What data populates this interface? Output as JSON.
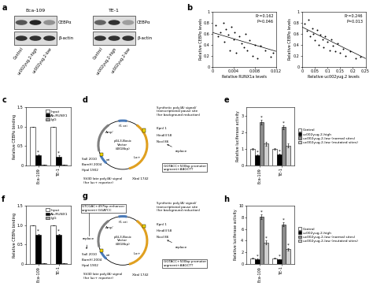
{
  "blot": {
    "panel": "a",
    "groups": [
      {
        "name": "Eca-109",
        "lanes": [
          "Control",
          "uc002yug.2-high",
          "uc002yug.2-low"
        ],
        "rows": [
          {
            "label": "CEBPα",
            "intensity": [
              0.7,
              0.9,
              0.45
            ]
          },
          {
            "label": "β-actin",
            "intensity": [
              0.85,
              0.85,
              0.85
            ]
          }
        ]
      },
      {
        "name": "TE-1",
        "lanes": [
          "Control",
          "uc002yug.2-high",
          "uc002yug.2-low"
        ],
        "rows": [
          {
            "label": "CEBPα",
            "intensity": [
              0.65,
              0.85,
              0.4
            ]
          },
          {
            "label": "β-actin",
            "intensity": [
              0.85,
              0.85,
              0.85
            ]
          }
        ]
      }
    ]
  },
  "chart_data": [
    {
      "panel": "b",
      "type": "scatter",
      "x_label": "Relative RUNX1a levels",
      "y_label": "Relative CEBPα levels",
      "x": [
        0.0005,
        0.001,
        0.0015,
        0.002,
        0.0022,
        0.0025,
        0.003,
        0.0032,
        0.0035,
        0.004,
        0.0042,
        0.0045,
        0.005,
        0.0055,
        0.006,
        0.0062,
        0.0065,
        0.007,
        0.0075,
        0.008,
        0.0085,
        0.009,
        0.01,
        0.011,
        0.0115
      ],
      "values": [
        0.75,
        0.55,
        0.62,
        0.8,
        0.45,
        0.68,
        0.58,
        0.3,
        0.72,
        0.5,
        0.62,
        0.25,
        0.55,
        0.42,
        0.35,
        0.6,
        0.3,
        0.48,
        0.2,
        0.4,
        0.15,
        0.38,
        0.3,
        0.18,
        0.25
      ],
      "fit_line": {
        "x": [
          0,
          0.012
        ],
        "values": [
          0.62,
          0.28
        ]
      },
      "xlim": [
        0,
        0.012
      ],
      "xticks": [
        0,
        0.004,
        0.008,
        0.012
      ],
      "ylim": [
        0,
        1
      ],
      "yticks": [
        0,
        0.2,
        0.4,
        0.6,
        0.8,
        1
      ],
      "annotations": [
        "R²=0.162",
        "P=0.046"
      ],
      "color": "#000000",
      "marker": "o"
    },
    {
      "type": "scatter",
      "x_label": "Relative uc002yug.2 levels",
      "y_label": "Relative CEBPα levels",
      "x": [
        0.01,
        0.02,
        0.025,
        0.03,
        0.04,
        0.045,
        0.05,
        0.06,
        0.065,
        0.07,
        0.08,
        0.085,
        0.09,
        0.1,
        0.11,
        0.115,
        0.12,
        0.13,
        0.14,
        0.15,
        0.16,
        0.17,
        0.19,
        0.21,
        0.23
      ],
      "values": [
        0.78,
        0.65,
        0.85,
        0.55,
        0.7,
        0.6,
        0.48,
        0.66,
        0.4,
        0.58,
        0.5,
        0.35,
        0.55,
        0.45,
        0.3,
        0.5,
        0.38,
        0.28,
        0.42,
        0.25,
        0.33,
        0.2,
        0.28,
        0.15,
        0.18
      ],
      "fit_line": {
        "x": [
          0,
          0.25
        ],
        "values": [
          0.72,
          0.15
        ]
      },
      "xlim": [
        0,
        0.25
      ],
      "xticks": [
        0,
        0.05,
        0.1,
        0.15,
        0.2,
        0.25
      ],
      "ylim": [
        0,
        1
      ],
      "yticks": [
        0,
        0.2,
        0.4,
        0.6,
        0.8,
        1
      ],
      "annotations": [
        "R²=0.246",
        "P=0.013"
      ],
      "color": "#000000",
      "marker": "o"
    },
    {
      "panel": "c",
      "type": "bar",
      "y_label": "Relative CEBPα binding",
      "categories": [
        "Eca-109",
        "TE-1"
      ],
      "series": [
        {
          "name": "Input",
          "color": "#ffffff",
          "values": [
            1,
            1
          ],
          "errors": [
            0,
            0
          ]
        },
        {
          "name": "Ab-RUNX1",
          "color": "#000000",
          "values": [
            0.25,
            0.22
          ],
          "errors": [
            0.03,
            0.03
          ],
          "annotations": [
            "*",
            "*"
          ]
        },
        {
          "name": "IgG",
          "color": "#a6a6a6",
          "values": [
            0.02,
            0.02
          ],
          "errors": [
            0.005,
            0.005
          ]
        }
      ],
      "ylim": [
        0,
        1.5
      ],
      "yticks": [
        0,
        0.5,
        1.0,
        1.5
      ],
      "legend": "upper right"
    },
    {
      "panel": "e",
      "type": "bar",
      "y_label": "Relative luciferase activity",
      "categories": [
        "Eca-109",
        "TE-1"
      ],
      "series": [
        {
          "name": "Control",
          "color": "#ffffff",
          "values": [
            1,
            1
          ],
          "errors": [
            0.05,
            0.05
          ]
        },
        {
          "name": "uc002yug.2-high",
          "color": "#000000",
          "values": [
            0.6,
            0.65
          ],
          "errors": [
            0.05,
            0.06
          ],
          "annotations": [
            "*",
            "*"
          ]
        },
        {
          "name": "uc002yug.2-low (normal sites)",
          "color": "#8c8c8c",
          "values": [
            2.6,
            2.3
          ],
          "errors": [
            0.15,
            0.12
          ],
          "annotations": [
            "*",
            "*"
          ]
        },
        {
          "name": "uc002yug.2-low (mutated sites)",
          "color": "#d0d0d0",
          "values": [
            1.3,
            1.2
          ],
          "errors": [
            0.1,
            0.1
          ]
        }
      ],
      "ylim": [
        0,
        3.5
      ],
      "yticks": [
        0,
        1,
        2,
        3
      ],
      "legend": "right"
    },
    {
      "panel": "f",
      "type": "bar",
      "y_label": "Relative CEBPα binding",
      "categories": [
        "Eca-109",
        "TE-1"
      ],
      "series": [
        {
          "name": "Input",
          "color": "#ffffff",
          "values": [
            1,
            1
          ],
          "errors": [
            0,
            0
          ]
        },
        {
          "name": "Ab-RUNX1",
          "color": "#000000",
          "values": [
            0.75,
            0.75
          ],
          "errors": [
            0.03,
            0.03
          ],
          "annotations": [
            "*",
            "*"
          ]
        },
        {
          "name": "IgG",
          "color": "#a6a6a6",
          "values": [
            0.02,
            0.02
          ],
          "errors": [
            0.005,
            0.005
          ]
        }
      ],
      "ylim": [
        0,
        1.5
      ],
      "yticks": [
        0,
        0.5,
        1.0,
        1.5
      ],
      "legend": "upper right"
    },
    {
      "panel": "h",
      "type": "bar",
      "y_label": "Relative luciferase activity",
      "categories": [
        "Eca-109",
        "TE-1"
      ],
      "series": [
        {
          "name": "Control",
          "color": "#ffffff",
          "values": [
            1,
            1
          ],
          "errors": [
            0.1,
            0.1
          ]
        },
        {
          "name": "uc002yug.2-high",
          "color": "#000000",
          "values": [
            0.8,
            0.75
          ],
          "errors": [
            0.1,
            0.1
          ],
          "annotations": [
            "*",
            "*"
          ]
        },
        {
          "name": "uc002yug.2-low (normal sites)",
          "color": "#8c8c8c",
          "values": [
            8.1,
            6.8
          ],
          "errors": [
            0.4,
            0.35
          ],
          "annotations": [
            "*",
            "*"
          ]
        },
        {
          "name": "uc002yug.2-low (mutated sites)",
          "color": "#d0d0d0",
          "values": [
            3.7,
            2.5
          ],
          "errors": [
            0.3,
            0.25
          ],
          "annotations": [
            "*",
            "*"
          ]
        }
      ],
      "ylim": [
        0,
        10
      ],
      "yticks": [
        0,
        2,
        4,
        6,
        8,
        10
      ],
      "legend": "right"
    }
  ],
  "diagrams": [
    {
      "panel": "d",
      "vector": "pGL3-Basic\nVector\n(4818bp)",
      "labels": {
        "resistance": "Ampʳ",
        "ori": "ori",
        "f1_ori": "f1 ori",
        "reporter": "luc+",
        "poly_a_upper": "Synthetic poly(A) signal/\ntranscriptional pause site\n(for background reduction)",
        "poly_a_lower": "SV40 late poly(A) signal\n(for luc+ reporter)"
      },
      "sites_upper": [
        "KpnI 1",
        "HindIII 58",
        "NcoI 86"
      ],
      "sites_lower": [
        "SalI 2010",
        "BamHI 2004",
        "HpaI 1902"
      ],
      "site_bottom": "XbaI 1742",
      "insert_upper": {
        "text": "GGTACC+500bp promoter\nsegment+AAGCTT",
        "note": "replace"
      }
    },
    {
      "panel": "g",
      "vector": "pGL3-Basic\nVector\n(4818bp)",
      "labels": {
        "resistance": "Ampʳ",
        "ori": "ori",
        "f1_ori": "f1 ori",
        "reporter": "luc+",
        "poly_a_upper": "Synthetic poly(A) signal/\ntranscriptional pause site\n(for background reduction)",
        "poly_a_lower": "SV40 late poly(A) signal\n(for luc+ reporter)"
      },
      "sites_upper": [
        "KpnI 1",
        "HindIII 58",
        "NcoI 86"
      ],
      "sites_lower": [
        "SalI 2010",
        "BamHI 2004",
        "HpaI 1902"
      ],
      "site_bottom": "XbaI 1742",
      "insert_upper": {
        "text": "GGTACC+500bp promoter\nsegment+AAGCTT",
        "note": "replace"
      },
      "insert_lower": {
        "text": "GTCGAC+497bp enhancer\nsegment+GGATCC",
        "note": "replace"
      }
    }
  ]
}
